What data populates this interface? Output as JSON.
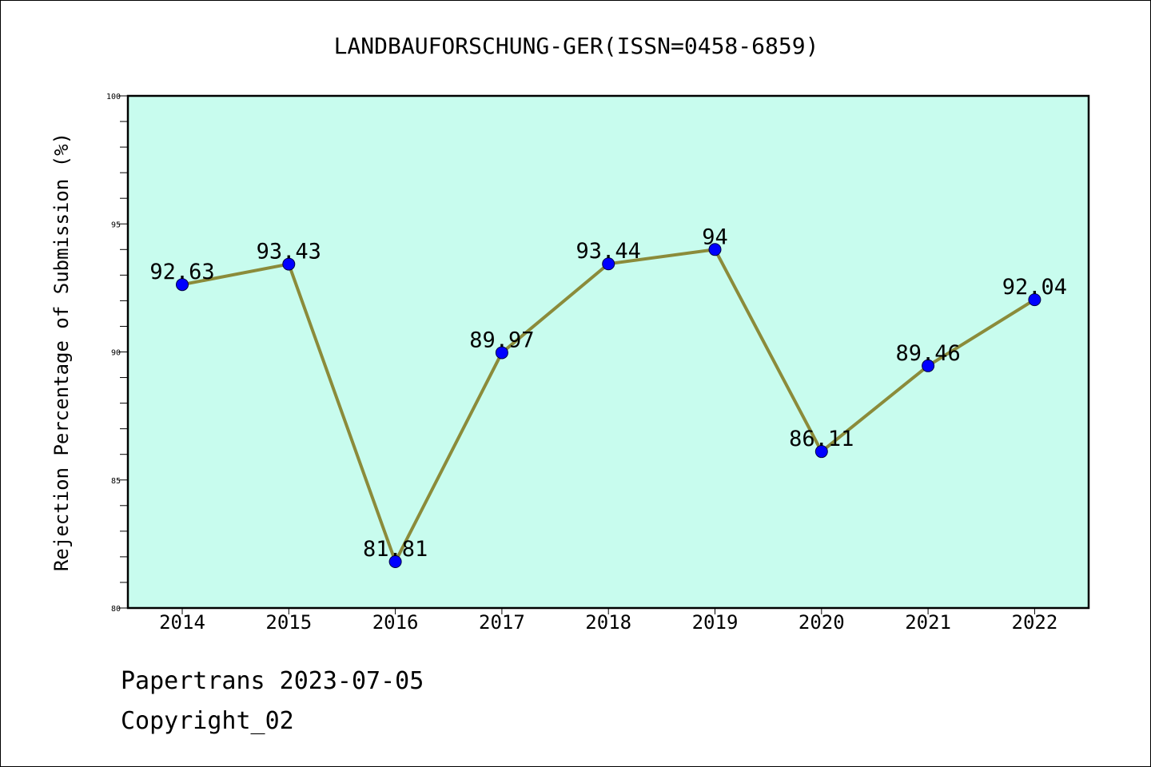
{
  "chart_data": {
    "type": "line",
    "title": "LANDBAUFORSCHUNG-GER(ISSN=0458-6859)",
    "xlabel": "",
    "ylabel": "Rejection Percentage of Submission (%)",
    "categories": [
      "2014",
      "2015",
      "2016",
      "2017",
      "2018",
      "2019",
      "2020",
      "2021",
      "2022"
    ],
    "series": [
      {
        "values": [
          92.63,
          93.43,
          81.81,
          89.97,
          93.44,
          94,
          86.11,
          89.46,
          92.04
        ],
        "labels": [
          "92.63",
          "93.43",
          "81.81",
          "89.97",
          "93.44",
          "94",
          "86.11",
          "89.46",
          "92.04"
        ]
      }
    ],
    "ylim": [
      80,
      100
    ],
    "yticks": [
      80,
      85,
      90,
      95,
      100
    ],
    "grid": false,
    "legend": "none",
    "colors": {
      "plot_background": "#c8fcee",
      "line": "#8b8b3a",
      "marker": "#0000ff"
    }
  },
  "footer": {
    "line1": "Papertrans 2023-07-05",
    "line2": "Copyright_02"
  }
}
